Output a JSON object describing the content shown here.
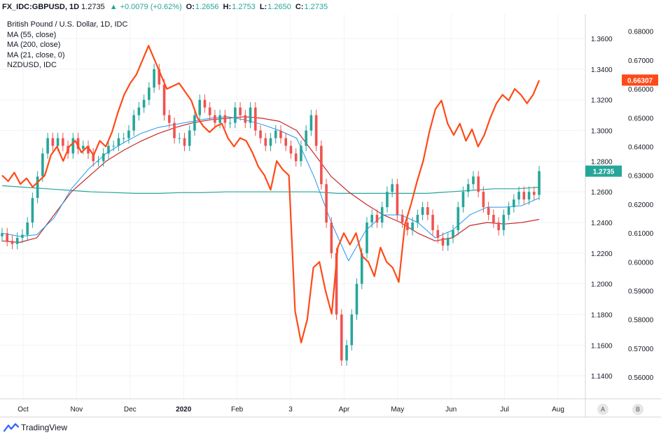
{
  "header": {
    "symbol": "FX_IDC:GBPUSD, 1D",
    "last": "1.2735",
    "change": "+0.0079 (+0.62%)",
    "o_label": "O:",
    "o_value": "1.2656",
    "h_label": "H:",
    "h_value": "1.2753",
    "l_label": "L:",
    "l_value": "1.2650",
    "c_label": "C:",
    "c_value": "1.2735"
  },
  "legend": [
    "British Pound / U.S. Dollar, 1D, IDC",
    "MA (55, close)",
    "MA (200, close)",
    "MA (21, close, 0)",
    "NZDUSD, IDC"
  ],
  "badges": {
    "nzdusd": "0.66307",
    "gbpusd": "1.2735"
  },
  "scale_buttons": {
    "auto": "A",
    "base": "B"
  },
  "branding": {
    "name": "TradingView"
  },
  "colors": {
    "up": "#26a69a",
    "down": "#ef5350",
    "nzdusd": "#ff4a17",
    "ma55": "#2196f3",
    "ma200": "#26a69a",
    "ma21": "#c62828"
  },
  "chart_data": {
    "type": "candlestick",
    "title": "British Pound / U.S. Dollar, 1D, IDC",
    "x_ticks": [
      "Oct",
      "Nov",
      "Dec",
      "2020",
      "Feb",
      "3",
      "Apr",
      "May",
      "Jun",
      "Jul",
      "Aug"
    ],
    "y_left": {
      "label": "GBPUSD",
      "ticks": [
        "1.3600",
        "1.3400",
        "1.3200",
        "1.3000",
        "1.2800",
        "1.2600",
        "1.2400",
        "1.2200",
        "1.2000",
        "1.1800",
        "1.1600",
        "1.1400"
      ],
      "range": [
        1.125,
        1.376
      ]
    },
    "y_right": {
      "label": "NZDUSD",
      "ticks": [
        "0.68000",
        "0.67000",
        "0.66000",
        "0.65000",
        "0.64000",
        "0.63000",
        "0.62000",
        "0.61000",
        "0.60000",
        "0.59000",
        "0.58000",
        "0.57000",
        "0.56000"
      ],
      "range": [
        0.5525,
        0.686
      ]
    },
    "gbpusd_close": [
      1.233,
      1.228,
      1.226,
      1.23,
      1.232,
      1.24,
      1.256,
      1.27,
      1.285,
      1.295,
      1.29,
      1.295,
      1.29,
      1.285,
      1.295,
      1.288,
      1.29,
      1.285,
      1.28,
      1.28,
      1.285,
      1.29,
      1.29,
      1.295,
      1.295,
      1.3,
      1.31,
      1.315,
      1.32,
      1.328,
      1.34,
      1.33,
      1.31,
      1.305,
      1.295,
      1.295,
      1.29,
      1.3,
      1.31,
      1.32,
      1.315,
      1.31,
      1.305,
      1.31,
      1.305,
      1.305,
      1.315,
      1.31,
      1.305,
      1.315,
      1.3,
      1.295,
      1.29,
      1.295,
      1.3,
      1.295,
      1.29,
      1.285,
      1.28,
      1.29,
      1.3,
      1.31,
      1.29,
      1.265,
      1.24,
      1.22,
      1.18,
      1.15,
      1.16,
      1.18,
      1.2,
      1.22,
      1.24,
      1.245,
      1.24,
      1.25,
      1.26,
      1.265,
      1.245,
      1.24,
      1.235,
      1.24,
      1.245,
      1.25,
      1.245,
      1.235,
      1.23,
      1.225,
      1.23,
      1.235,
      1.25,
      1.26,
      1.265,
      1.27,
      1.26,
      1.25,
      1.245,
      1.24,
      1.235,
      1.245,
      1.25,
      1.255,
      1.26,
      1.255,
      1.26,
      1.258,
      1.2735
    ],
    "nzdusd_close": [
      0.63,
      0.628,
      0.631,
      0.627,
      0.629,
      0.626,
      0.628,
      0.63,
      0.637,
      0.64,
      0.635,
      0.64,
      0.642,
      0.638,
      0.64,
      0.637,
      0.642,
      0.64,
      0.645,
      0.652,
      0.658,
      0.662,
      0.665,
      0.67,
      0.675,
      0.67,
      0.665,
      0.66,
      0.661,
      0.662,
      0.659,
      0.656,
      0.65,
      0.647,
      0.645,
      0.647,
      0.648,
      0.643,
      0.64,
      0.643,
      0.642,
      0.638,
      0.633,
      0.63,
      0.625,
      0.635,
      0.632,
      0.63,
      0.583,
      0.572,
      0.58,
      0.598,
      0.6,
      0.59,
      0.582,
      0.605,
      0.61,
      0.606,
      0.61,
      0.602,
      0.6,
      0.595,
      0.605,
      0.6,
      0.598,
      0.593,
      0.613,
      0.62,
      0.628,
      0.635,
      0.645,
      0.653,
      0.656,
      0.648,
      0.644,
      0.648,
      0.642,
      0.646,
      0.64,
      0.644,
      0.65,
      0.655,
      0.658,
      0.656,
      0.66,
      0.658,
      0.655,
      0.658,
      0.663
    ],
    "ma55": [
      1.233,
      1.231,
      1.232,
      1.243,
      1.262,
      1.275,
      1.285,
      1.292,
      1.298,
      1.302,
      1.304,
      1.306,
      1.308,
      1.309,
      1.307,
      1.304,
      1.3,
      1.295,
      1.27,
      1.24,
      1.215,
      1.235,
      1.245,
      1.245,
      1.24,
      1.23,
      1.235,
      1.245,
      1.25,
      1.25,
      1.251,
      1.256
    ],
    "ma200": [
      1.264,
      1.263,
      1.262,
      1.261,
      1.26,
      1.2595,
      1.259,
      1.259,
      1.2595,
      1.2595,
      1.26,
      1.26,
      1.26,
      1.26,
      1.26,
      1.259,
      1.259,
      1.259,
      1.259,
      1.259,
      1.26,
      1.261,
      1.262,
      1.262,
      1.263
    ],
    "ma21": [
      1.228,
      1.227,
      1.23,
      1.245,
      1.26,
      1.27,
      1.28,
      1.287,
      1.293,
      1.298,
      1.302,
      1.305,
      1.307,
      1.308,
      1.309,
      1.308,
      1.306,
      1.3,
      1.285,
      1.27,
      1.26,
      1.252,
      1.245,
      1.24,
      1.233,
      1.228,
      1.23,
      1.238,
      1.24,
      1.239,
      1.24,
      1.242
    ],
    "grid": true
  }
}
